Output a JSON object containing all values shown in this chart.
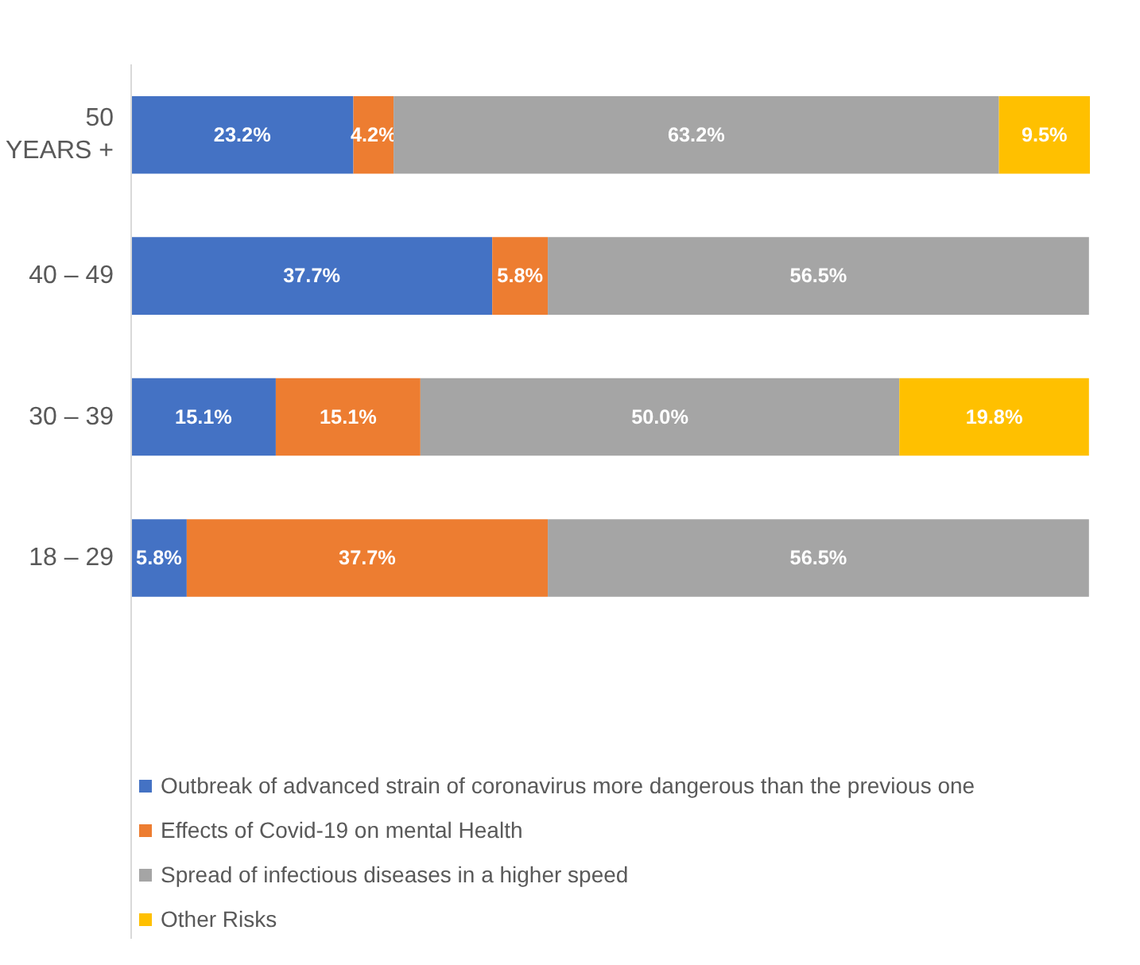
{
  "chart_data": {
    "type": "bar",
    "orientation": "horizontal",
    "stacked": true,
    "tick_labels": "y",
    "categories": [
      "50\nYEARS +",
      "40 – 49",
      "30 – 39",
      "18 – 29"
    ],
    "series": [
      {
        "name": "Outbreak of advanced strain of coronavirus more dangerous than the previous one",
        "color": "#4472c4",
        "values": [
          23.2,
          37.7,
          15.1,
          5.8
        ],
        "value_labels": [
          "23.2%",
          "37.7%",
          "15.1%",
          "5.8%"
        ]
      },
      {
        "name": "Effects of Covid-19 on mental Health",
        "color": "#ed7d31",
        "values": [
          4.2,
          5.8,
          15.1,
          37.7
        ],
        "value_labels": [
          "4.2%",
          "5.8%",
          "15.1%",
          "37.7%"
        ]
      },
      {
        "name": "Spread of infectious diseases in a higher speed",
        "color": "#a5a5a5",
        "values": [
          63.2,
          56.5,
          50.0,
          56.5
        ],
        "value_labels": [
          "63.2%",
          "56.5%",
          "50.0%",
          "56.5%"
        ]
      },
      {
        "name": "Other Risks",
        "color": "#ffc000",
        "values": [
          9.5,
          null,
          19.8,
          null
        ],
        "value_labels": [
          "9.5%",
          null,
          "19.8%",
          null
        ]
      }
    ],
    "legend": "bottom",
    "grid": false
  }
}
